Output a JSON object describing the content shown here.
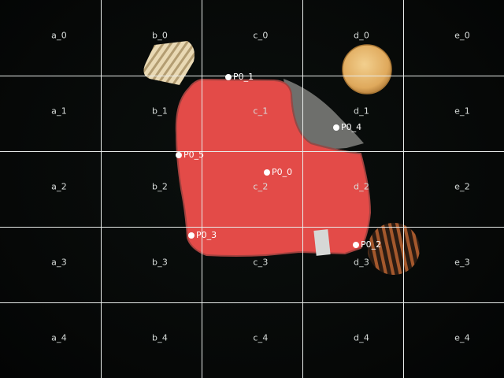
{
  "grid": {
    "labels": [
      "a_0",
      "b_0",
      "c_0",
      "d_0",
      "e_0",
      "a_1",
      "b_1",
      "c_1",
      "d_1",
      "e_1",
      "a_2",
      "b_2",
      "c_2",
      "d_2",
      "e_2",
      "a_3",
      "b_3",
      "c_3",
      "d_3",
      "e_3",
      "a_4",
      "b_4",
      "c_4",
      "d_4",
      "e_4"
    ]
  },
  "points": [
    {
      "label": "P0_0"
    },
    {
      "label": "P0_1"
    },
    {
      "label": "P0_2"
    },
    {
      "label": "P0_3"
    },
    {
      "label": "P0_4"
    },
    {
      "label": "P0_5"
    }
  ],
  "colors": {
    "cloth_red": "#e34b48",
    "cloth_gray": "#6e6f6c",
    "background": "#050706",
    "grid": "#e8ecea"
  }
}
